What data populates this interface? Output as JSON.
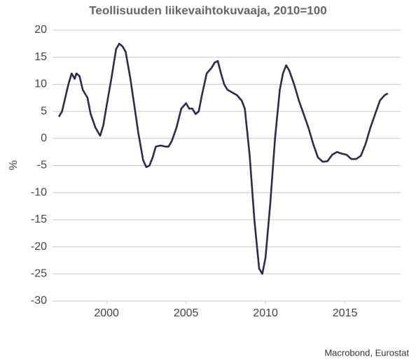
{
  "chart_data": {
    "type": "line",
    "title": "Teollisuuden liikevaihtokuvaaja,  2010=100",
    "y_label": "%",
    "source": "Macrobond, Eurostat",
    "xlim": [
      1996.6,
      2018.5
    ],
    "xticks": [
      2000,
      2005,
      2010,
      2015
    ],
    "ylim": [
      -30,
      20
    ],
    "yticks": [
      20,
      15,
      10,
      5,
      0,
      -5,
      -10,
      -15,
      -20,
      -25,
      -30
    ],
    "grid": true,
    "x": [
      1997.0,
      1997.2,
      1997.4,
      1997.6,
      1997.8,
      1998.0,
      1998.1,
      1998.3,
      1998.5,
      1998.8,
      1999.0,
      1999.3,
      1999.6,
      1999.8,
      2000.0,
      2000.3,
      2000.6,
      2000.8,
      2001.0,
      2001.2,
      2001.5,
      2001.8,
      2002.0,
      2002.3,
      2002.5,
      2002.7,
      2002.9,
      2003.1,
      2003.4,
      2003.7,
      2003.9,
      2004.1,
      2004.4,
      2004.7,
      2005.0,
      2005.2,
      2005.4,
      2005.6,
      2005.8,
      2006.0,
      2006.3,
      2006.6,
      2006.8,
      2007.0,
      2007.2,
      2007.4,
      2007.6,
      2007.9,
      2008.2,
      2008.5,
      2008.7,
      2009.0,
      2009.3,
      2009.6,
      2009.8,
      2010.0,
      2010.3,
      2010.6,
      2010.9,
      2011.1,
      2011.3,
      2011.5,
      2011.8,
      2012.1,
      2012.4,
      2012.7,
      2013.0,
      2013.3,
      2013.6,
      2013.9,
      2014.2,
      2014.5,
      2014.8,
      2015.1,
      2015.4,
      2015.7,
      2016.0,
      2016.3,
      2016.6,
      2016.9,
      2017.2,
      2017.5,
      2017.7
    ],
    "series": [
      {
        "color": "#2c2a54",
        "values": [
          4,
          5,
          7.5,
          10,
          12,
          11,
          12,
          11.5,
          9,
          7.5,
          4.5,
          2,
          0.5,
          2.5,
          6,
          11,
          16.5,
          17.5,
          17,
          16,
          11,
          5,
          1,
          -4,
          -5.3,
          -5,
          -3.5,
          -1.5,
          -1.3,
          -1.5,
          -1.5,
          -0.5,
          2,
          5.5,
          6.5,
          5.5,
          5.5,
          4.5,
          5,
          8,
          12,
          13,
          14,
          14.3,
          12,
          10,
          9,
          8.5,
          8,
          7,
          5.5,
          -3,
          -15,
          -24,
          -25,
          -22,
          -12,
          0,
          9,
          12,
          13.5,
          12.5,
          10,
          7,
          4.5,
          2,
          -1,
          -3.5,
          -4.3,
          -4.2,
          -3,
          -2.5,
          -2.8,
          -3,
          -3.8,
          -3.8,
          -3.2,
          -1,
          2,
          4.5,
          7,
          8,
          8.3
        ]
      }
    ]
  }
}
